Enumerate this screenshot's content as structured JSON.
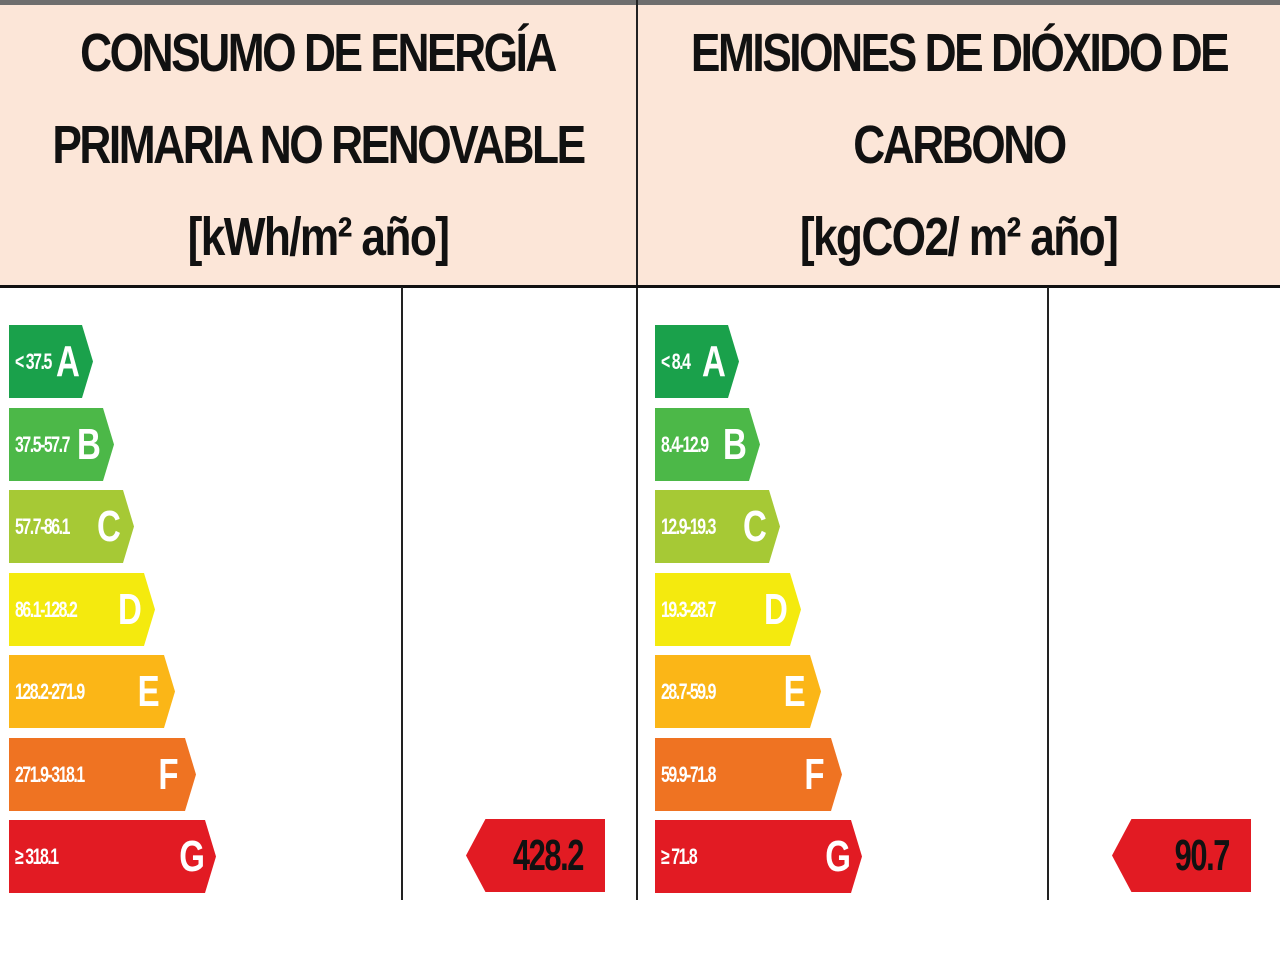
{
  "energy": {
    "title_line1": "CONSUMO DE ENERGÍA",
    "title_line2": "PRIMARIA NO RENOVABLE",
    "unit": "[kWh/m² año]",
    "classes": [
      {
        "letter": "A",
        "range": "< 37.5",
        "color": "#1aa14b"
      },
      {
        "letter": "B",
        "range": "37.5-57.7",
        "color": "#4cb848"
      },
      {
        "letter": "C",
        "range": "57.7-86.1",
        "color": "#a6c935"
      },
      {
        "letter": "D",
        "range": "86.1-128.2",
        "color": "#f4ea0e"
      },
      {
        "letter": "E",
        "range": "128.2-271.9",
        "color": "#fbb617"
      },
      {
        "letter": "F",
        "range": "271.9-318.1",
        "color": "#ef7322"
      },
      {
        "letter": "G",
        "range": "≥ 318.1",
        "color": "#e21b23"
      }
    ],
    "result": "428.2 G"
  },
  "emissions": {
    "title_line1": "EMISIONES DE DIÓXIDO DE",
    "title_line2": "CARBONO",
    "unit": "[kgCO2/ m² año]",
    "classes": [
      {
        "letter": "A",
        "range": "< 8.4",
        "color": "#1aa14b"
      },
      {
        "letter": "B",
        "range": "8.4-12.9",
        "color": "#4cb848"
      },
      {
        "letter": "C",
        "range": "12.9-19.3",
        "color": "#a6c935"
      },
      {
        "letter": "D",
        "range": "19.3-28.7",
        "color": "#f4ea0e"
      },
      {
        "letter": "E",
        "range": "28.7-59.9",
        "color": "#fbb617"
      },
      {
        "letter": "F",
        "range": "59.9-71.8",
        "color": "#ef7322"
      },
      {
        "letter": "G",
        "range": "≥ 71.8",
        "color": "#e21b23"
      }
    ],
    "result": "90.7 G"
  }
}
